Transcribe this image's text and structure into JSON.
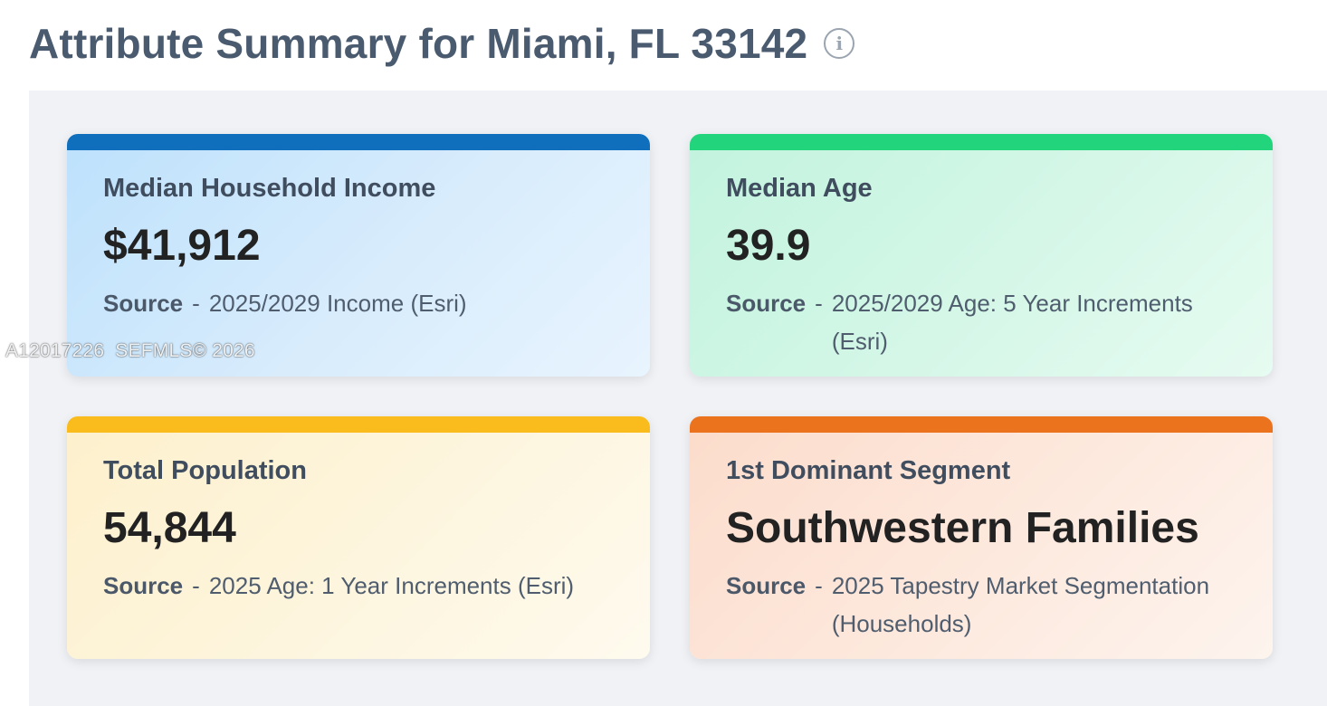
{
  "header": {
    "title": "Attribute Summary for Miami, FL 33142",
    "info_icon": "info-icon"
  },
  "cards": [
    {
      "label": "Median Household Income",
      "value": "$41,912",
      "source_label": "Source",
      "source_sep": "-",
      "source_text": "2025/2029 Income (Esri)",
      "accent_color": "#0f6fbd"
    },
    {
      "label": "Median Age",
      "value": "39.9",
      "source_label": "Source",
      "source_sep": "-",
      "source_text": "2025/2029 Age: 5 Year Increments (Esri)",
      "accent_color": "#22d47c"
    },
    {
      "label": "Total Population",
      "value": "54,844",
      "source_label": "Source",
      "source_sep": "-",
      "source_text": "2025 Age: 1 Year Increments (Esri)",
      "accent_color": "#f9bc1c"
    },
    {
      "label": "1st Dominant Segment",
      "value": "Southwestern Families",
      "source_label": "Source",
      "source_sep": "-",
      "source_text": "2025 Tapestry Market Segmentation (Households)",
      "accent_color": "#ec731e"
    }
  ],
  "watermark": "A12017226  SEFMLS© 2026"
}
